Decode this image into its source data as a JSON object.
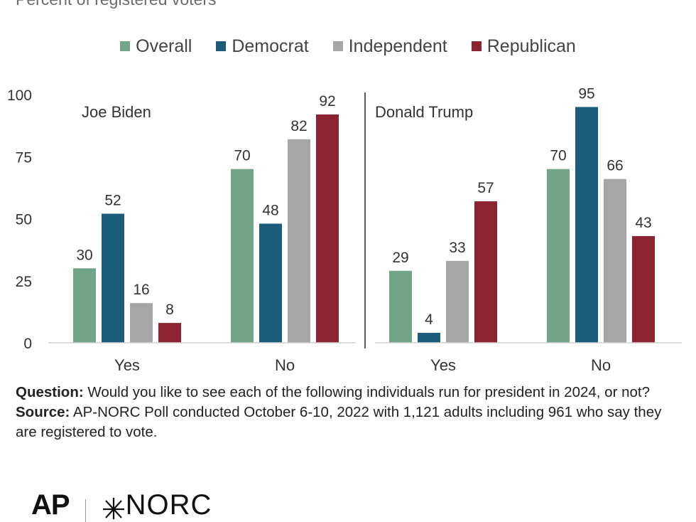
{
  "subtitle": "Percent of registered voters",
  "legend": [
    {
      "label": "Overall",
      "color": "#72a488"
    },
    {
      "label": "Democrat",
      "color": "#1b5c7a"
    },
    {
      "label": "Independent",
      "color": "#a6a6a6"
    },
    {
      "label": "Republican",
      "color": "#8c2331"
    }
  ],
  "chart_data": {
    "type": "bar",
    "ylim": [
      0,
      100
    ],
    "yticks": [
      0,
      25,
      50,
      75,
      100
    ],
    "grid": false,
    "legend_position": "top",
    "panels": [
      {
        "label": "Joe Biden",
        "categories": [
          "Yes",
          "No"
        ],
        "series": [
          {
            "name": "Overall",
            "values": [
              30,
              70
            ]
          },
          {
            "name": "Democrat",
            "values": [
              52,
              48
            ]
          },
          {
            "name": "Independent",
            "values": [
              16,
              82
            ]
          },
          {
            "name": "Republican",
            "values": [
              8,
              92
            ]
          }
        ]
      },
      {
        "label": "Donald Trump",
        "categories": [
          "Yes",
          "No"
        ],
        "series": [
          {
            "name": "Overall",
            "values": [
              29,
              70
            ]
          },
          {
            "name": "Democrat",
            "values": [
              4,
              95
            ]
          },
          {
            "name": "Independent",
            "values": [
              33,
              66
            ]
          },
          {
            "name": "Republican",
            "values": [
              57,
              43
            ]
          }
        ]
      }
    ]
  },
  "notes": {
    "question_label": "Question:",
    "question_text": " Would you like to see each of the following individuals run for president in 2024, or not?",
    "source_label": "Source:",
    "source_text": " AP-NORC Poll conducted October 6-10, 2022 with 1,121 adults  including 961 who say they are registered to vote."
  },
  "logos": {
    "ap": "AP",
    "norc": "NORC"
  }
}
